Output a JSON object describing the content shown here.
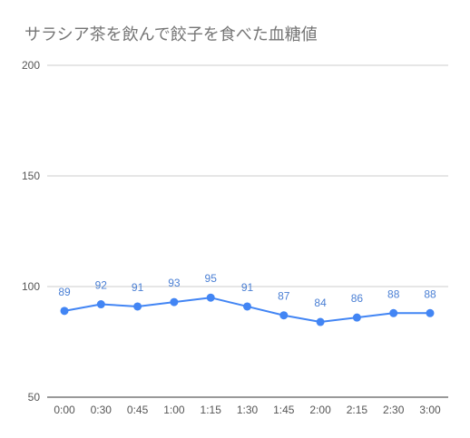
{
  "chart_data": {
    "type": "line",
    "title": "サラシア茶を飲んで餃子を食べた血糖値",
    "xlabel": "",
    "ylabel": "",
    "categories": [
      "0:00",
      "0:30",
      "0:45",
      "1:00",
      "1:15",
      "1:30",
      "1:45",
      "2:00",
      "2:15",
      "2:30",
      "3:00"
    ],
    "series": [
      {
        "values": [
          89,
          92,
          91,
          93,
          95,
          91,
          87,
          84,
          86,
          88,
          88
        ]
      }
    ],
    "ylim": [
      50,
      200
    ],
    "yticks": [
      50,
      100,
      150,
      200
    ],
    "grid": true,
    "legend": "none",
    "data_labels": true,
    "colors": {
      "series": "#4285f4",
      "label": "#4a7fd4",
      "grid": "#cccccc",
      "axis": "#333333",
      "tick_label": "#555555"
    }
  }
}
